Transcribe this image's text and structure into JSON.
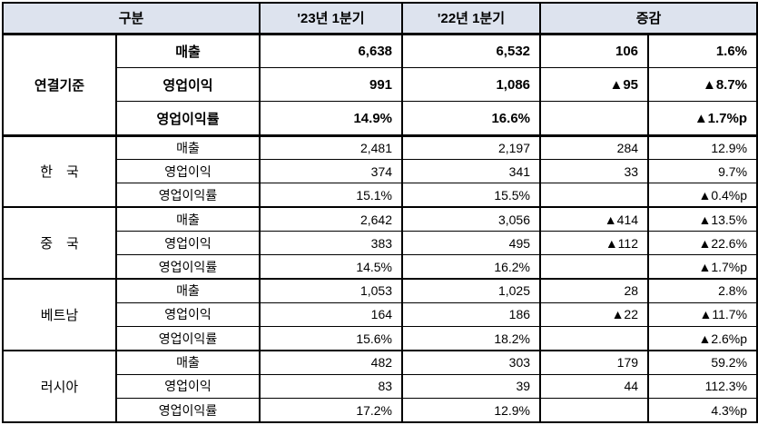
{
  "table": {
    "headers": {
      "gubun": "구분",
      "q23": "'23년 1분기",
      "q22": "'22년 1분기",
      "change": "증감"
    },
    "groups": [
      {
        "name": "연결기준",
        "emphasis": true,
        "rows": [
          {
            "label": "매출",
            "q23": "6,638",
            "q22": "6,532",
            "diff": "106",
            "pct": "1.6%"
          },
          {
            "label": "영업이익",
            "q23": "991",
            "q22": "1,086",
            "diff": "▲95",
            "pct": "▲8.7%"
          },
          {
            "label": "영업이익률",
            "q23": "14.9%",
            "q22": "16.6%",
            "diff": "",
            "pct": "▲1.7%p"
          }
        ]
      },
      {
        "name": "한　국",
        "emphasis": false,
        "rows": [
          {
            "label": "매출",
            "q23": "2,481",
            "q22": "2,197",
            "diff": "284",
            "pct": "12.9%"
          },
          {
            "label": "영업이익",
            "q23": "374",
            "q22": "341",
            "diff": "33",
            "pct": "9.7%"
          },
          {
            "label": "영업이익률",
            "q23": "15.1%",
            "q22": "15.5%",
            "diff": "",
            "pct": "▲0.4%p"
          }
        ]
      },
      {
        "name": "중　국",
        "emphasis": false,
        "rows": [
          {
            "label": "매출",
            "q23": "2,642",
            "q22": "3,056",
            "diff": "▲414",
            "pct": "▲13.5%"
          },
          {
            "label": "영업이익",
            "q23": "383",
            "q22": "495",
            "diff": "▲112",
            "pct": "▲22.6%"
          },
          {
            "label": "영업이익률",
            "q23": "14.5%",
            "q22": "16.2%",
            "diff": "",
            "pct": "▲1.7%p"
          }
        ]
      },
      {
        "name": "베트남",
        "emphasis": false,
        "rows": [
          {
            "label": "매출",
            "q23": "1,053",
            "q22": "1,025",
            "diff": "28",
            "pct": "2.8%"
          },
          {
            "label": "영업이익",
            "q23": "164",
            "q22": "186",
            "diff": "▲22",
            "pct": "▲11.7%"
          },
          {
            "label": "영업이익률",
            "q23": "15.6%",
            "q22": "18.2%",
            "diff": "",
            "pct": "▲2.6%p"
          }
        ]
      },
      {
        "name": "러시아",
        "emphasis": false,
        "rows": [
          {
            "label": "매출",
            "q23": "482",
            "q22": "303",
            "diff": "179",
            "pct": "59.2%"
          },
          {
            "label": "영업이익",
            "q23": "83",
            "q22": "39",
            "diff": "44",
            "pct": "112.3%"
          },
          {
            "label": "영업이익률",
            "q23": "17.2%",
            "q22": "12.9%",
            "diff": "",
            "pct": "4.3%p"
          }
        ]
      }
    ]
  },
  "colors": {
    "header_bg": "#dde3ee",
    "border": "#000000",
    "negative_marker": "▲"
  }
}
